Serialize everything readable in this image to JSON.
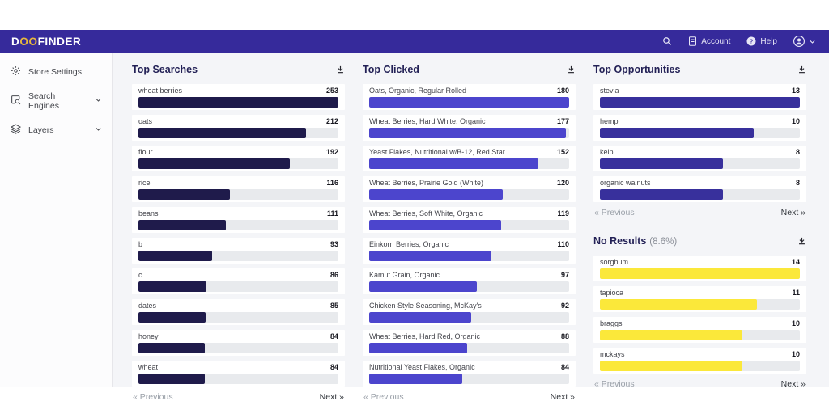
{
  "navbar": {
    "logo_d": "D",
    "logo_oo": "OO",
    "logo_finder": "FINDER",
    "account_label": "Account",
    "help_label": "Help"
  },
  "sidebar": {
    "items": [
      {
        "label": "Store Settings"
      },
      {
        "label": "Search Engines"
      },
      {
        "label": "Layers"
      }
    ]
  },
  "colors": {
    "navbar_bg": "#362a9b",
    "logo_accent": "#e8b83c",
    "main_bg": "#f4f5f8",
    "track": "#e8eaed",
    "navy_bar": "#1f1b4b",
    "purple_bar": "#4c45cd",
    "indigo_bar": "#38309c",
    "yellow_bar": "#fbe83a"
  },
  "panels": [
    {
      "title": "Top Searches",
      "bar_color": "#1f1b4b",
      "max": 253,
      "items": [
        {
          "label": "wheat berries",
          "value": 253
        },
        {
          "label": "oats",
          "value": 212
        },
        {
          "label": "flour",
          "value": 192
        },
        {
          "label": "rice",
          "value": 116
        },
        {
          "label": "beans",
          "value": 111
        },
        {
          "label": "b",
          "value": 93
        },
        {
          "label": "c",
          "value": 86
        },
        {
          "label": "dates",
          "value": 85
        },
        {
          "label": "honey",
          "value": 84
        },
        {
          "label": "wheat",
          "value": 84
        }
      ],
      "pagination": {
        "prev": "« Previous",
        "next": "Next »"
      }
    },
    {
      "title": "Top Clicked",
      "bar_color": "#4c45cd",
      "max": 180,
      "items": [
        {
          "label": "Oats, Organic, Regular Rolled",
          "value": 180
        },
        {
          "label": "Wheat Berries, Hard White, Organic",
          "value": 177
        },
        {
          "label": "Yeast Flakes, Nutritional w/B-12, Red Star",
          "value": 152
        },
        {
          "label": "Wheat Berries, Prairie Gold (White)",
          "value": 120
        },
        {
          "label": "Wheat Berries, Soft White, Organic",
          "value": 119
        },
        {
          "label": "Einkorn Berries, Organic",
          "value": 110
        },
        {
          "label": "Kamut Grain, Organic",
          "value": 97
        },
        {
          "label": "Chicken Style Seasoning, McKay's",
          "value": 92
        },
        {
          "label": "Wheat Berries, Hard Red, Organic",
          "value": 88
        },
        {
          "label": "Nutritional Yeast Flakes, Organic",
          "value": 84
        }
      ],
      "pagination": {
        "prev": "« Previous",
        "next": "Next »"
      }
    },
    {
      "title": "Top Opportunities",
      "bar_color": "#38309c",
      "max": 13,
      "items": [
        {
          "label": "stevia",
          "value": 13
        },
        {
          "label": "hemp",
          "value": 10
        },
        {
          "label": "kelp",
          "value": 8
        },
        {
          "label": "organic walnuts",
          "value": 8
        }
      ],
      "pagination": {
        "prev": "« Previous",
        "next": "Next »"
      }
    },
    {
      "title": "No Results",
      "subtitle": "(8.6%)",
      "bar_color": "#fbe83a",
      "max": 14,
      "items": [
        {
          "label": "sorghum",
          "value": 14
        },
        {
          "label": "tapioca",
          "value": 11
        },
        {
          "label": "braggs",
          "value": 10
        },
        {
          "label": "mckays",
          "value": 10
        }
      ],
      "pagination": {
        "prev": "« Previous",
        "next": "Next »"
      }
    }
  ]
}
